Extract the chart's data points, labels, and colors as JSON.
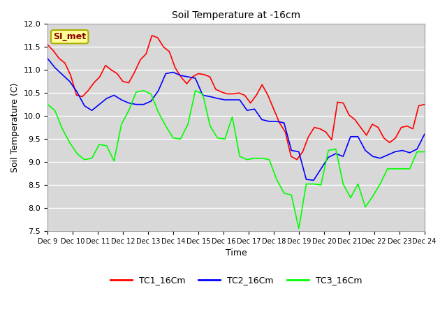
{
  "title": "Soil Temperature at -16cm",
  "xlabel": "Time",
  "ylabel": "Soil Temperature (C)",
  "ylim": [
    7.5,
    12.0
  ],
  "background_color": "#ffffff",
  "plot_bg_color": "#d8d8d8",
  "grid_color": "#ffffff",
  "annotation_text": "SI_met",
  "annotation_fg": "#8B0000",
  "annotation_bg": "#ffff99",
  "annotation_border": "#aaaa00",
  "legend_entries": [
    "TC1_16Cm",
    "TC2_16Cm",
    "TC3_16Cm"
  ],
  "line_colors": [
    "red",
    "blue",
    "lime"
  ],
  "xtick_labels": [
    "Dec 9",
    "Dec 10",
    "Dec 11",
    "Dec 12",
    "Dec 13",
    "Dec 14",
    "Dec 15",
    "Dec 16",
    "Dec 17",
    "Dec 18",
    "Dec 19",
    "Dec 20",
    "Dec 21",
    "Dec 22",
    "Dec 23",
    "Dec 24"
  ],
  "ytick_values": [
    7.5,
    8.0,
    8.5,
    9.0,
    9.5,
    10.0,
    10.5,
    11.0,
    11.5,
    12.0
  ],
  "TC1_16Cm": [
    11.55,
    11.42,
    11.25,
    11.15,
    10.88,
    10.45,
    10.42,
    10.55,
    10.72,
    10.85,
    11.1,
    11.0,
    10.92,
    10.75,
    10.72,
    10.95,
    11.22,
    11.35,
    11.75,
    11.7,
    11.5,
    11.4,
    11.05,
    10.85,
    10.7,
    10.85,
    10.92,
    10.9,
    10.85,
    10.58,
    10.52,
    10.48,
    10.48,
    10.5,
    10.45,
    10.28,
    10.45,
    10.68,
    10.45,
    10.15,
    9.85,
    9.65,
    9.12,
    9.05,
    9.22,
    9.55,
    9.75,
    9.72,
    9.65,
    9.48,
    10.3,
    10.28,
    10.02,
    9.92,
    9.75,
    9.58,
    9.82,
    9.75,
    9.52,
    9.42,
    9.52,
    9.75,
    9.78,
    9.72,
    10.22,
    10.25
  ],
  "TC2_16Cm": [
    11.25,
    11.05,
    10.9,
    10.75,
    10.52,
    10.22,
    10.12,
    10.25,
    10.38,
    10.45,
    10.35,
    10.28,
    10.25,
    10.25,
    10.32,
    10.55,
    10.92,
    10.95,
    10.88,
    10.85,
    10.82,
    10.45,
    10.42,
    10.38,
    10.35,
    10.35,
    10.35,
    10.12,
    10.15,
    9.92,
    9.88,
    9.88,
    9.85,
    9.25,
    9.22,
    8.62,
    8.6,
    8.85,
    9.1,
    9.18,
    9.12,
    9.55,
    9.55,
    9.25,
    9.12,
    9.08,
    9.15,
    9.22,
    9.25,
    9.2,
    9.28,
    9.6
  ],
  "TC3_16Cm": [
    10.25,
    10.12,
    9.72,
    9.42,
    9.18,
    9.05,
    9.08,
    9.38,
    9.35,
    9.02,
    9.82,
    10.12,
    10.52,
    10.55,
    10.48,
    10.08,
    9.78,
    9.52,
    9.5,
    9.82,
    10.55,
    10.48,
    9.78,
    9.52,
    9.5,
    9.98,
    9.12,
    9.05,
    9.08,
    9.08,
    9.05,
    8.62,
    8.32,
    8.28,
    7.55,
    8.52,
    8.52,
    8.5,
    9.25,
    9.28,
    8.52,
    8.22,
    8.52,
    8.02,
    8.25,
    8.52,
    8.85,
    8.85,
    8.85,
    8.85,
    9.22,
    9.22
  ]
}
